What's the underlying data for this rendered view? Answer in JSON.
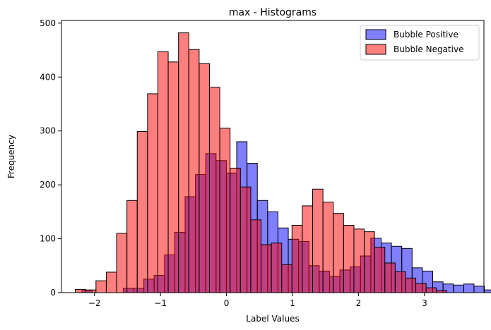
{
  "chart_data": {
    "type": "bar",
    "title": "max - Histograms",
    "xlabel": "Label Values",
    "ylabel": "Frequency",
    "xlim": [
      -2.5,
      3.9
    ],
    "ylim": [
      0,
      505
    ],
    "xticks": [
      -2,
      -1,
      0,
      1,
      2,
      3
    ],
    "yticks": [
      0,
      100,
      200,
      300,
      400,
      500
    ],
    "legend_position": "top-right",
    "grid": false,
    "series": [
      {
        "name": "Bubble Positive",
        "color": "#0000ff",
        "fill_opacity": 0.5,
        "bin_width": 0.1563,
        "bin_start": -2.19,
        "values": [
          4,
          0,
          0,
          0,
          8,
          8,
          25,
          32,
          70,
          112,
          178,
          219,
          258,
          245,
          222,
          280,
          240,
          171,
          150,
          120,
          99,
          95,
          50,
          40,
          30,
          42,
          48,
          68,
          101,
          92,
          86,
          82,
          46,
          40,
          20,
          16,
          14,
          16,
          12,
          5,
          4,
          3,
          2,
          2,
          1
        ]
      },
      {
        "name": "Bubble Negative",
        "color": "#ff0000",
        "fill_opacity": 0.5,
        "bin_width": 0.1563,
        "bin_start": -2.29,
        "values": [
          6,
          5,
          22,
          38,
          110,
          171,
          299,
          369,
          447,
          428,
          482,
          451,
          425,
          381,
          305,
          231,
          196,
          135,
          89,
          92,
          52,
          125,
          161,
          192,
          168,
          147,
          125,
          118,
          113,
          84,
          55,
          39,
          27,
          17,
          9,
          4
        ]
      }
    ]
  }
}
